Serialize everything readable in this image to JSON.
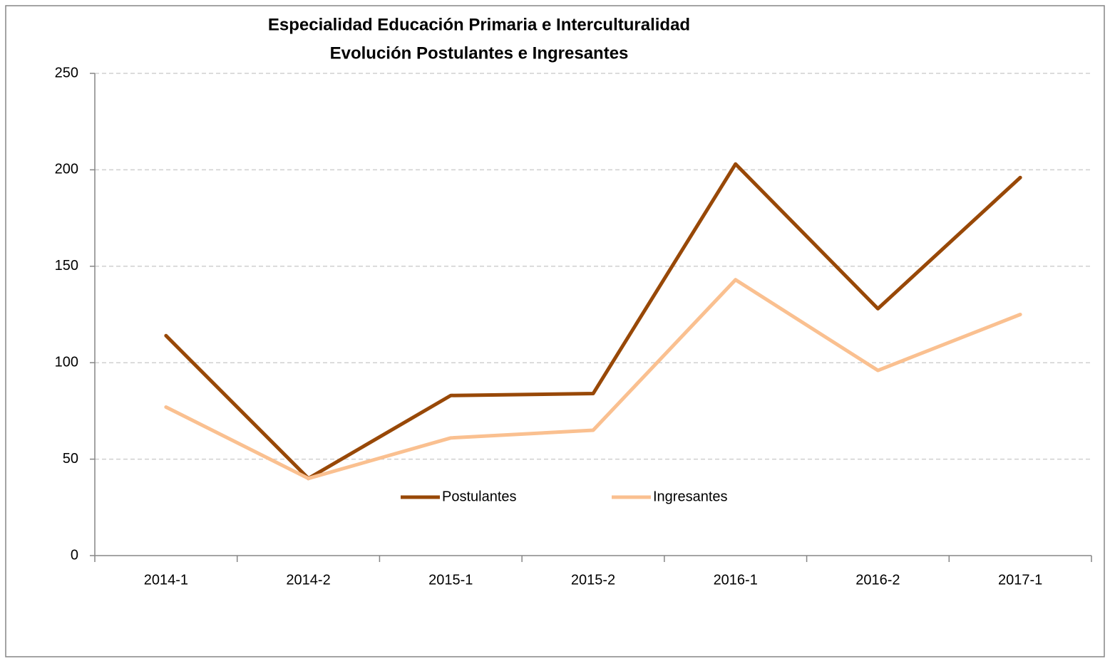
{
  "chart_data": {
    "type": "line",
    "title": "Especialidad Educación Primaria e Interculturalidad",
    "subtitle": "Evolución Postulantes e Ingresantes",
    "categories": [
      "2014-1",
      "2014-2",
      "2015-1",
      "2015-2",
      "2016-1",
      "2016-2",
      "2017-1"
    ],
    "series": [
      {
        "name": "Postulantes",
        "color": "#984807",
        "values": [
          114,
          40,
          83,
          84,
          203,
          128,
          196
        ]
      },
      {
        "name": "Ingresantes",
        "color": "#fac090",
        "values": [
          77,
          40,
          61,
          65,
          143,
          96,
          125
        ]
      }
    ],
    "ylim": [
      0,
      250
    ],
    "yticks": [
      0,
      50,
      100,
      150,
      200,
      250
    ],
    "grid": true,
    "legend": "bottom"
  }
}
